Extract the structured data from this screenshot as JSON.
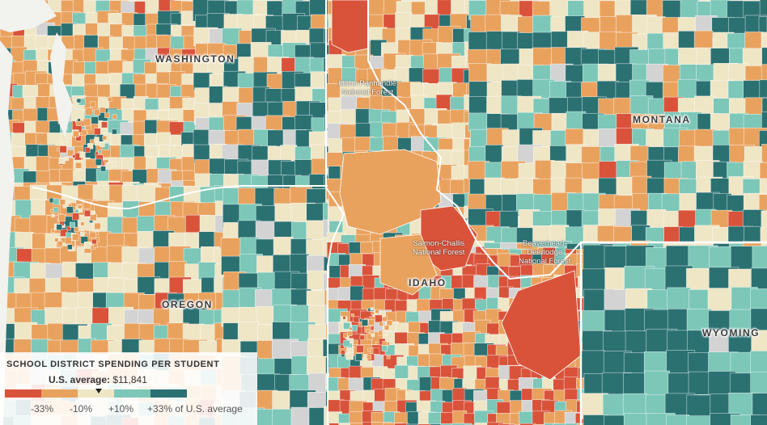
{
  "colors": {
    "low": "#d9533b",
    "below": "#e9a25e",
    "near": "#efe6c6",
    "above": "#7cc7b8",
    "high": "#2b7172",
    "nodata": "#d3d3d3",
    "border": "#ffffff"
  },
  "states": {
    "washington": "WASHINGTON",
    "oregon": "OREGON",
    "idaho": "IDAHO",
    "montana": "MONTANA",
    "wyoming": "WYOMING"
  },
  "forests": {
    "idaho_panhandle": [
      "Idaho Panhandle",
      "National Forest"
    ],
    "salmon_challis": [
      "Salmon-Challis",
      "National Forest"
    ],
    "beaverhead": [
      "Beaverhead-",
      "Deerlodge",
      "National Forest"
    ]
  },
  "legend": {
    "title": "SCHOOL DISTRICT SPENDING PER STUDENT",
    "avg_label": "U.S. average:",
    "avg_value": "$11,841",
    "ticks": [
      "-33%",
      "-10%",
      "+10%",
      "+33% of U.S. average"
    ]
  }
}
